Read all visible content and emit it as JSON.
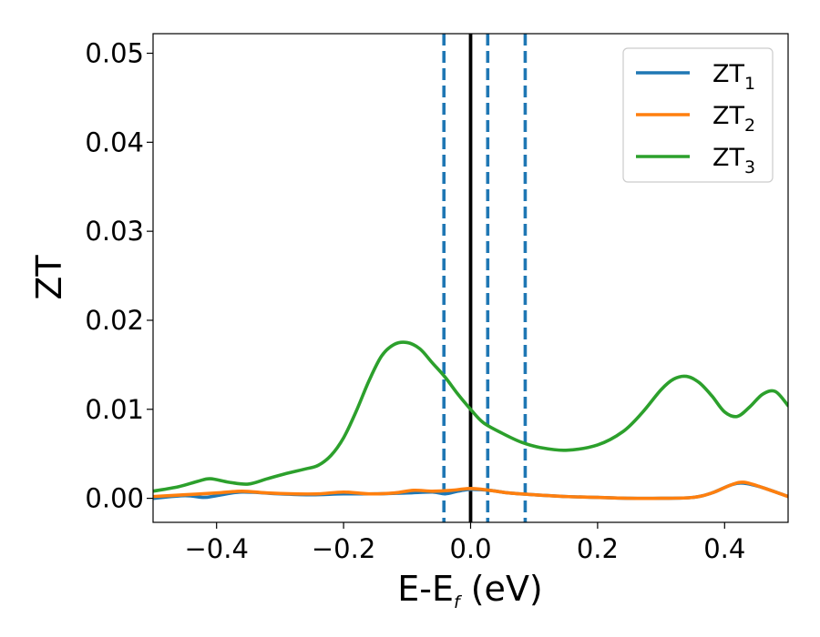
{
  "chart_data": {
    "type": "line",
    "xlabel": "E-E",
    "xlabel_sub": "f",
    "xlabel_unit": " (eV)",
    "ylabel": "ZT",
    "xlim": [
      -0.5,
      0.5
    ],
    "ylim": [
      -0.0027,
      0.0522
    ],
    "xticks": [
      -0.4,
      -0.2,
      0.0,
      0.2,
      0.4
    ],
    "xtick_labels": [
      "−0.4",
      "−0.2",
      "0.0",
      "0.2",
      "0.4"
    ],
    "yticks": [
      0.0,
      0.01,
      0.02,
      0.03,
      0.04,
      0.05
    ],
    "ytick_labels": [
      "0.00",
      "0.01",
      "0.02",
      "0.03",
      "0.04",
      "0.05"
    ],
    "legend_position": "top-right",
    "grid": false,
    "series": [
      {
        "name": "ZT",
        "name_sub": "1",
        "color": "#1f77b4",
        "x": [
          -0.5,
          -0.45,
          -0.42,
          -0.4,
          -0.36,
          -0.3,
          -0.25,
          -0.2,
          -0.15,
          -0.1,
          -0.06,
          -0.04,
          -0.02,
          0.0,
          0.03,
          0.06,
          0.1,
          0.15,
          0.2,
          0.25,
          0.3,
          0.35,
          0.38,
          0.41,
          0.43,
          0.46,
          0.5
        ],
        "y": [
          0.0,
          0.0003,
          0.0001,
          0.0003,
          0.0007,
          0.0005,
          0.0004,
          0.0005,
          0.0005,
          0.0006,
          0.0007,
          0.0005,
          0.0008,
          0.001,
          0.0009,
          0.0006,
          0.0004,
          0.0002,
          0.0001,
          0.0,
          0.0,
          0.0001,
          0.0006,
          0.0015,
          0.0017,
          0.0012,
          0.0002
        ]
      },
      {
        "name": "ZT",
        "name_sub": "2",
        "color": "#ff7f0e",
        "x": [
          -0.5,
          -0.45,
          -0.4,
          -0.36,
          -0.32,
          -0.28,
          -0.24,
          -0.2,
          -0.16,
          -0.12,
          -0.09,
          -0.06,
          -0.03,
          0.0,
          0.03,
          0.06,
          0.1,
          0.15,
          0.2,
          0.25,
          0.3,
          0.35,
          0.38,
          0.41,
          0.43,
          0.46,
          0.5
        ],
        "y": [
          0.0002,
          0.0004,
          0.0006,
          0.0008,
          0.0006,
          0.0005,
          0.0005,
          0.0007,
          0.0005,
          0.0006,
          0.0009,
          0.0008,
          0.0009,
          0.0011,
          0.0009,
          0.0006,
          0.0004,
          0.0002,
          0.0001,
          0.0,
          0.0,
          0.0001,
          0.0006,
          0.0015,
          0.0018,
          0.0012,
          0.0002
        ]
      },
      {
        "name": "ZT",
        "name_sub": "3",
        "color": "#2ca02c",
        "x": [
          -0.5,
          -0.46,
          -0.43,
          -0.41,
          -0.38,
          -0.35,
          -0.32,
          -0.29,
          -0.26,
          -0.24,
          -0.22,
          -0.2,
          -0.18,
          -0.16,
          -0.14,
          -0.12,
          -0.1,
          -0.08,
          -0.06,
          -0.04,
          -0.02,
          0.0,
          0.02,
          0.05,
          0.08,
          0.11,
          0.15,
          0.2,
          0.24,
          0.27,
          0.3,
          0.32,
          0.34,
          0.36,
          0.38,
          0.4,
          0.42,
          0.44,
          0.46,
          0.48,
          0.5
        ],
        "y": [
          0.0008,
          0.0013,
          0.0019,
          0.0022,
          0.0018,
          0.0016,
          0.0022,
          0.0028,
          0.0033,
          0.0037,
          0.0048,
          0.0068,
          0.0098,
          0.0132,
          0.016,
          0.0173,
          0.0175,
          0.0168,
          0.0152,
          0.0136,
          0.0117,
          0.01,
          0.0085,
          0.0073,
          0.0063,
          0.0057,
          0.0054,
          0.006,
          0.0075,
          0.0096,
          0.0122,
          0.0134,
          0.0137,
          0.013,
          0.0115,
          0.0097,
          0.0092,
          0.0103,
          0.0117,
          0.012,
          0.0104
        ]
      }
    ],
    "vlines": [
      {
        "x": 0.0,
        "style": "solid",
        "color": "#000000"
      },
      {
        "x": -0.042,
        "style": "dashed",
        "color": "#1f77b4"
      },
      {
        "x": 0.027,
        "style": "dashed",
        "color": "#1f77b4"
      },
      {
        "x": 0.086,
        "style": "dashed",
        "color": "#1f77b4"
      }
    ]
  }
}
